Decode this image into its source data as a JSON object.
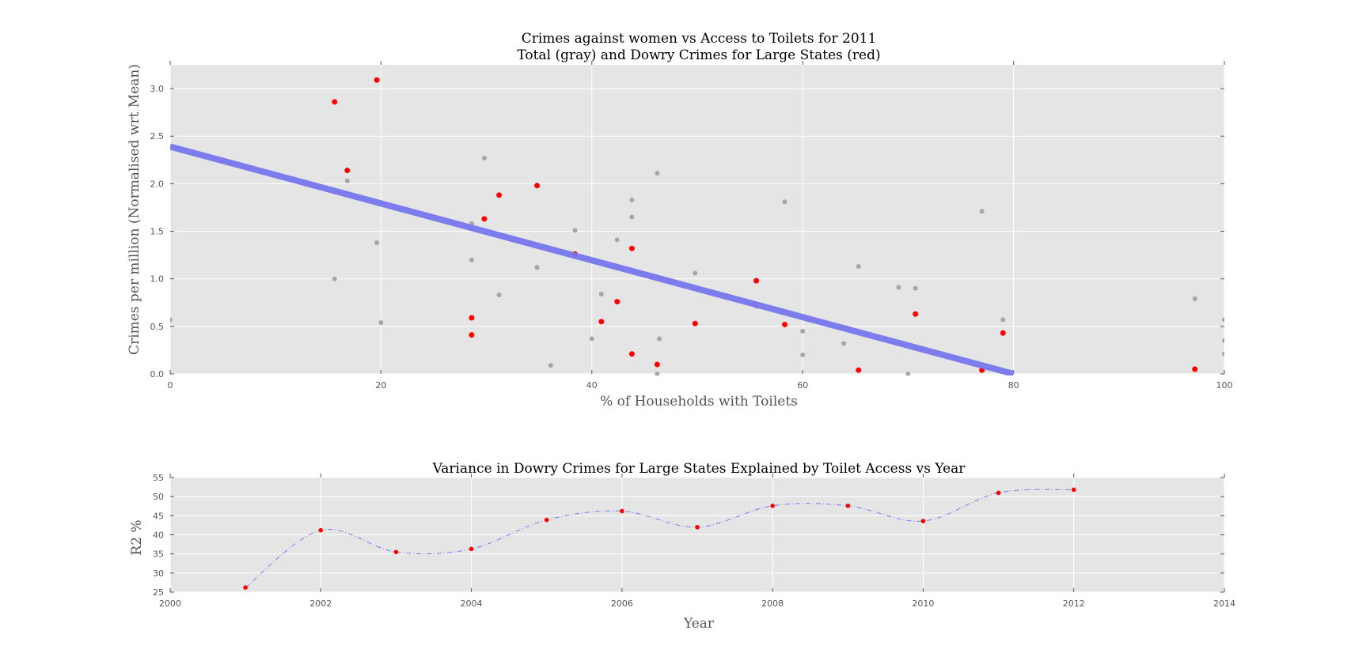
{
  "chart_data": [
    {
      "type": "scatter",
      "title_line1": "Crimes against women vs Access to Toilets for 2011",
      "title_line2": "Total (gray) and Dowry Crimes for Large States (red)",
      "xlabel": "% of Households with Toilets",
      "ylabel": "Crimes per million (Normalised wrt Mean)",
      "xlim": [
        0,
        100
      ],
      "ylim": [
        0,
        3.25
      ],
      "xticks": [
        0,
        20,
        40,
        60,
        80,
        100
      ],
      "yticks": [
        0.0,
        0.5,
        1.0,
        1.5,
        2.0,
        2.5,
        3.0
      ],
      "ytick_labels": [
        "0.0",
        "0.5",
        "1.0",
        "1.5",
        "2.0",
        "2.5",
        "3.0"
      ],
      "grid": true,
      "series": [
        {
          "color": "#a6a6a6",
          "points": [
            [
              0,
              0.57
            ],
            [
              15.6,
              1.0
            ],
            [
              16.8,
              2.03
            ],
            [
              19.6,
              1.38
            ],
            [
              20,
              0.54
            ],
            [
              28.6,
              1.58
            ],
            [
              28.6,
              1.2
            ],
            [
              29.8,
              2.27
            ],
            [
              31.2,
              0.83
            ],
            [
              34.8,
              1.12
            ],
            [
              36.1,
              0.09
            ],
            [
              38.4,
              1.51
            ],
            [
              40.0,
              0.37
            ],
            [
              40.9,
              0.84
            ],
            [
              42.4,
              1.41
            ],
            [
              43.8,
              1.83
            ],
            [
              43.8,
              1.65
            ],
            [
              46.2,
              2.11
            ],
            [
              46.4,
              0.37
            ],
            [
              49.8,
              1.06
            ],
            [
              55.6,
              0.71
            ],
            [
              58.3,
              1.81
            ],
            [
              60.0,
              0.45
            ],
            [
              60.0,
              0.2
            ],
            [
              63.9,
              0.32
            ],
            [
              65.3,
              1.13
            ],
            [
              69.1,
              0.91
            ],
            [
              70.7,
              0.9
            ],
            [
              70.0,
              0.0
            ],
            [
              77.0,
              1.71
            ],
            [
              79.0,
              0.57
            ],
            [
              97.2,
              0.79
            ],
            [
              100,
              0.57
            ],
            [
              100,
              0.35
            ],
            [
              100,
              0.21
            ],
            [
              46.2,
              0.0
            ]
          ]
        },
        {
          "color": "#ff0000",
          "points": [
            [
              15.6,
              2.86
            ],
            [
              16.8,
              2.14
            ],
            [
              19.6,
              3.09
            ],
            [
              28.6,
              0.59
            ],
            [
              28.6,
              0.41
            ],
            [
              29.8,
              1.63
            ],
            [
              31.2,
              1.88
            ],
            [
              34.8,
              1.98
            ],
            [
              38.4,
              1.26
            ],
            [
              40.9,
              0.55
            ],
            [
              42.4,
              0.76
            ],
            [
              43.8,
              1.32
            ],
            [
              43.8,
              0.21
            ],
            [
              46.2,
              0.1
            ],
            [
              49.8,
              0.53
            ],
            [
              55.6,
              0.98
            ],
            [
              58.3,
              0.52
            ],
            [
              65.3,
              0.04
            ],
            [
              70.7,
              0.63
            ],
            [
              77.0,
              0.04
            ],
            [
              79.0,
              0.43
            ],
            [
              97.2,
              0.05
            ]
          ]
        }
      ],
      "fit_line": {
        "color": "#7777ee",
        "points": [
          [
            0,
            2.39
          ],
          [
            80,
            0.0
          ]
        ]
      }
    },
    {
      "type": "line",
      "title": "Variance in Dowry Crimes for Large States Explained by Toilet Access vs Year",
      "xlabel": "Year",
      "ylabel": "R2 %",
      "xlim": [
        2000,
        2014
      ],
      "ylim": [
        25,
        55
      ],
      "xticks": [
        2000,
        2002,
        2004,
        2006,
        2008,
        2010,
        2012,
        2014
      ],
      "yticks": [
        25,
        30,
        35,
        40,
        45,
        50,
        55
      ],
      "grid": true,
      "line_color": "#7777ee",
      "marker_color": "#ff0000",
      "x": [
        2001,
        2002,
        2003,
        2004,
        2005,
        2006,
        2007,
        2008,
        2009,
        2010,
        2011,
        2012
      ],
      "values": [
        26.2,
        41.2,
        35.5,
        36.3,
        43.9,
        46.2,
        42.0,
        47.6,
        47.6,
        43.6,
        51.0,
        51.8
      ]
    }
  ]
}
